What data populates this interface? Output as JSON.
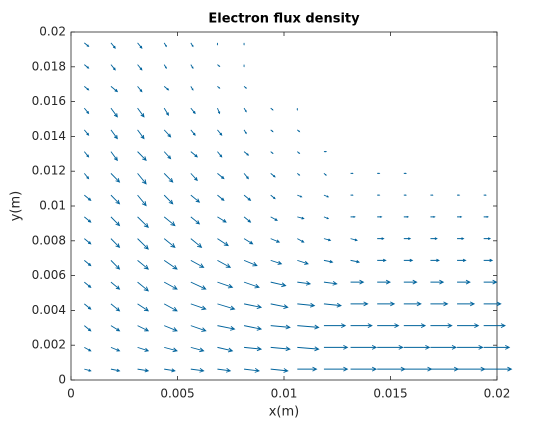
{
  "chart_data": {
    "type": "quiver",
    "title": "Electron flux density",
    "x_label": "x(m)",
    "y_label": "y(m)",
    "color": "#00639c",
    "xlim": [
      0,
      0.02
    ],
    "ylim": [
      0,
      0.02
    ],
    "xticks": [
      0,
      0.005,
      0.01,
      0.015,
      0.02
    ],
    "yticks": [
      0,
      0.002,
      0.004,
      0.006,
      0.008,
      0.01,
      0.012,
      0.014,
      0.016,
      0.018,
      0.02
    ],
    "x": [
      0.000625,
      0.001875,
      0.003125,
      0.004375,
      0.005625,
      0.006875,
      0.008125,
      0.009375,
      0.010625,
      0.011875,
      0.013125,
      0.014375,
      0.015625,
      0.016875,
      0.018125,
      0.019375
    ],
    "y": [
      0.000625,
      0.001875,
      0.003125,
      0.004375,
      0.005625,
      0.006875,
      0.008125,
      0.009375,
      0.010625,
      0.011875,
      0.013125,
      0.014375,
      0.015625,
      0.016875,
      0.018125,
      0.019375
    ],
    "u": [
      [
        0.0003,
        0.0004,
        0.0005,
        0.0005,
        0.0006,
        0.0006,
        0.0007,
        0.0008,
        0.0009,
        0.0011,
        0.0012,
        0.0013,
        0.0013,
        0.0013,
        0.0013,
        0.0013
      ],
      [
        0.0003,
        0.0004,
        0.0005,
        0.0006,
        0.0006,
        0.0007,
        0.0008,
        0.0009,
        0.001,
        0.0011,
        0.0012,
        0.0012,
        0.0012,
        0.0012,
        0.0012,
        0.0012
      ],
      [
        0.0003,
        0.0004,
        0.0005,
        0.0006,
        0.0007,
        0.0008,
        0.0008,
        0.0009,
        0.001,
        0.001,
        0.001,
        0.001,
        0.001,
        0.001,
        0.001,
        0.001
      ],
      [
        0.0003,
        0.0004,
        0.0005,
        0.0006,
        0.0007,
        0.0008,
        0.0008,
        0.0008,
        0.0008,
        0.0008,
        0.0008,
        0.0008,
        0.0008,
        0.0008,
        0.0008,
        0.0008
      ],
      [
        0.0003,
        0.0004,
        0.0005,
        0.0006,
        0.0007,
        0.0007,
        0.0007,
        0.0007,
        0.0006,
        0.0006,
        0.0006,
        0.0006,
        0.0006,
        0.0006,
        0.0006,
        0.0006
      ],
      [
        0.0003,
        0.0004,
        0.0005,
        0.0006,
        0.0006,
        0.0006,
        0.0006,
        0.0005,
        0.0005,
        0.0004,
        0.0004,
        0.0004,
        0.0004,
        0.0004,
        0.0004,
        0.0004
      ],
      [
        0.0003,
        0.0004,
        0.0005,
        0.0005,
        0.0005,
        0.0005,
        0.0004,
        0.0004,
        0.0003,
        0.0003,
        0.0003,
        0.0003,
        0.0003,
        0.0003,
        0.0003,
        0.0003
      ],
      [
        0.0003,
        0.0004,
        0.0005,
        0.0005,
        0.0004,
        0.0004,
        0.0003,
        0.0003,
        0.0003,
        0.0002,
        0.0002,
        0.0002,
        0.0002,
        0.0002,
        0.0002,
        0.0002
      ],
      [
        0.0003,
        0.0004,
        0.0004,
        0.0004,
        0.0004,
        0.0003,
        0.0003,
        0.0002,
        0.0002,
        0.0002,
        0.0001,
        0.0001,
        0.0001,
        0.0001,
        0.0001,
        0.0001
      ],
      [
        0.0002,
        0.0004,
        0.0004,
        0.0004,
        0.0003,
        0.0003,
        0.0002,
        0.0002,
        0.0001,
        0.0001,
        0.0001,
        0.0001,
        0.0001,
        0,
        0,
        0
      ],
      [
        0.0002,
        0.0003,
        0.0004,
        0.0003,
        0.0003,
        0.0002,
        0.0002,
        0.0001,
        0.0001,
        0.0001,
        0,
        0,
        0,
        0,
        0,
        0
      ],
      [
        0.0002,
        0.0003,
        0.0003,
        0.0003,
        0.0002,
        0.0002,
        0.0001,
        0.0001,
        0.0001,
        0,
        0,
        0,
        0,
        0,
        0,
        0
      ],
      [
        0.0002,
        0.0003,
        0.0003,
        0.0002,
        0.0002,
        0.0001,
        0.0001,
        0.0001,
        0,
        0,
        0,
        0,
        0,
        0,
        0,
        0
      ],
      [
        0.0002,
        0.0003,
        0.0002,
        0.0002,
        0.0001,
        0.0001,
        0.0001,
        0,
        0,
        0,
        0,
        0,
        0,
        0,
        0,
        0
      ],
      [
        0.0002,
        0.0002,
        0.0002,
        0.0001,
        0.0001,
        0.0001,
        0,
        0,
        0,
        0,
        0,
        0,
        0,
        0,
        0,
        0
      ],
      [
        0.0002,
        0.0002,
        0.0002,
        0.0001,
        0.0001,
        0,
        0,
        0,
        0,
        0,
        0,
        0,
        0,
        0,
        0,
        0
      ]
    ],
    "v": [
      [
        -0.0001,
        -0.0001,
        -0.0001,
        -0.0001,
        -0.0001,
        -0.0001,
        -0.0001,
        -0.0001,
        0,
        0,
        0,
        0,
        0,
        0,
        0,
        0
      ],
      [
        -0.0002,
        -0.0002,
        -0.0002,
        -0.0002,
        -0.0002,
        -0.0002,
        -0.0001,
        -0.0001,
        -0.0001,
        0,
        0,
        0,
        0,
        0,
        0,
        0
      ],
      [
        -0.0003,
        -0.0003,
        -0.0003,
        -0.0003,
        -0.0003,
        -0.0002,
        -0.0002,
        -0.0001,
        -0.0001,
        0,
        0,
        0,
        0,
        0,
        0,
        0
      ],
      [
        -0.0003,
        -0.0004,
        -0.0004,
        -0.0004,
        -0.0003,
        -0.0003,
        -0.0002,
        -0.0002,
        -0.0001,
        -0.0001,
        0,
        0,
        0,
        0,
        0,
        0
      ],
      [
        -0.0003,
        -0.0004,
        -0.0005,
        -0.0004,
        -0.0004,
        -0.0003,
        -0.0003,
        -0.0002,
        -0.0001,
        -0.0001,
        0,
        0,
        0,
        0,
        0,
        0
      ],
      [
        -0.0003,
        -0.0005,
        -0.0005,
        -0.0005,
        -0.0004,
        -0.0004,
        -0.0003,
        -0.0002,
        -0.0002,
        -0.0001,
        -0.0001,
        0,
        0,
        0,
        0,
        0
      ],
      [
        -0.0003,
        -0.0005,
        -0.0006,
        -0.0005,
        -0.0005,
        -0.0004,
        -0.0003,
        -0.0002,
        -0.0002,
        -0.0001,
        -0.0001,
        0,
        0,
        0,
        0,
        0
      ],
      [
        -0.0003,
        -0.0005,
        -0.0006,
        -0.0005,
        -0.0004,
        -0.0003,
        -0.0003,
        -0.0002,
        -0.0001,
        -0.0001,
        0,
        0,
        0,
        0,
        0,
        0
      ],
      [
        -0.0003,
        -0.0005,
        -0.0006,
        -0.0005,
        -0.0004,
        -0.0003,
        -0.0003,
        -0.0002,
        -0.0001,
        -0.0001,
        0,
        0,
        0,
        0,
        0,
        0
      ],
      [
        -0.0003,
        -0.0005,
        -0.0006,
        -0.0005,
        -0.0004,
        -0.0003,
        -0.0003,
        -0.0002,
        -0.0001,
        -0.0001,
        0,
        0,
        0,
        0,
        0,
        0
      ],
      [
        -0.0003,
        -0.0005,
        -0.0005,
        -0.0004,
        -0.0003,
        -0.0003,
        -0.0002,
        -0.0001,
        -0.0001,
        0,
        0,
        0,
        0,
        0,
        0,
        0
      ],
      [
        -0.0003,
        -0.0005,
        -0.0005,
        -0.0004,
        -0.0003,
        -0.0003,
        -0.0002,
        -0.0001,
        -0.0001,
        0,
        0,
        0,
        0,
        0,
        0,
        0
      ],
      [
        -0.0003,
        -0.0005,
        -0.0005,
        -0.0004,
        -0.0003,
        -0.0003,
        -0.0002,
        -0.0001,
        -0.0001,
        0,
        0,
        0,
        0,
        0,
        0,
        0
      ],
      [
        -0.0002,
        -0.0003,
        -0.0003,
        -0.0002,
        -0.0002,
        -0.0001,
        -0.0001,
        0,
        0,
        0,
        0,
        0,
        0,
        0,
        0,
        0
      ],
      [
        -0.0002,
        -0.0003,
        -0.0003,
        -0.0002,
        -0.0002,
        -0.0001,
        -0.0001,
        0,
        0,
        0,
        0,
        0,
        0,
        0,
        0,
        0
      ],
      [
        -0.0002,
        -0.0003,
        -0.0003,
        -0.0002,
        -0.0002,
        -0.0001,
        -0.0001,
        0,
        0,
        0,
        0,
        0,
        0,
        0,
        0,
        0
      ]
    ]
  }
}
